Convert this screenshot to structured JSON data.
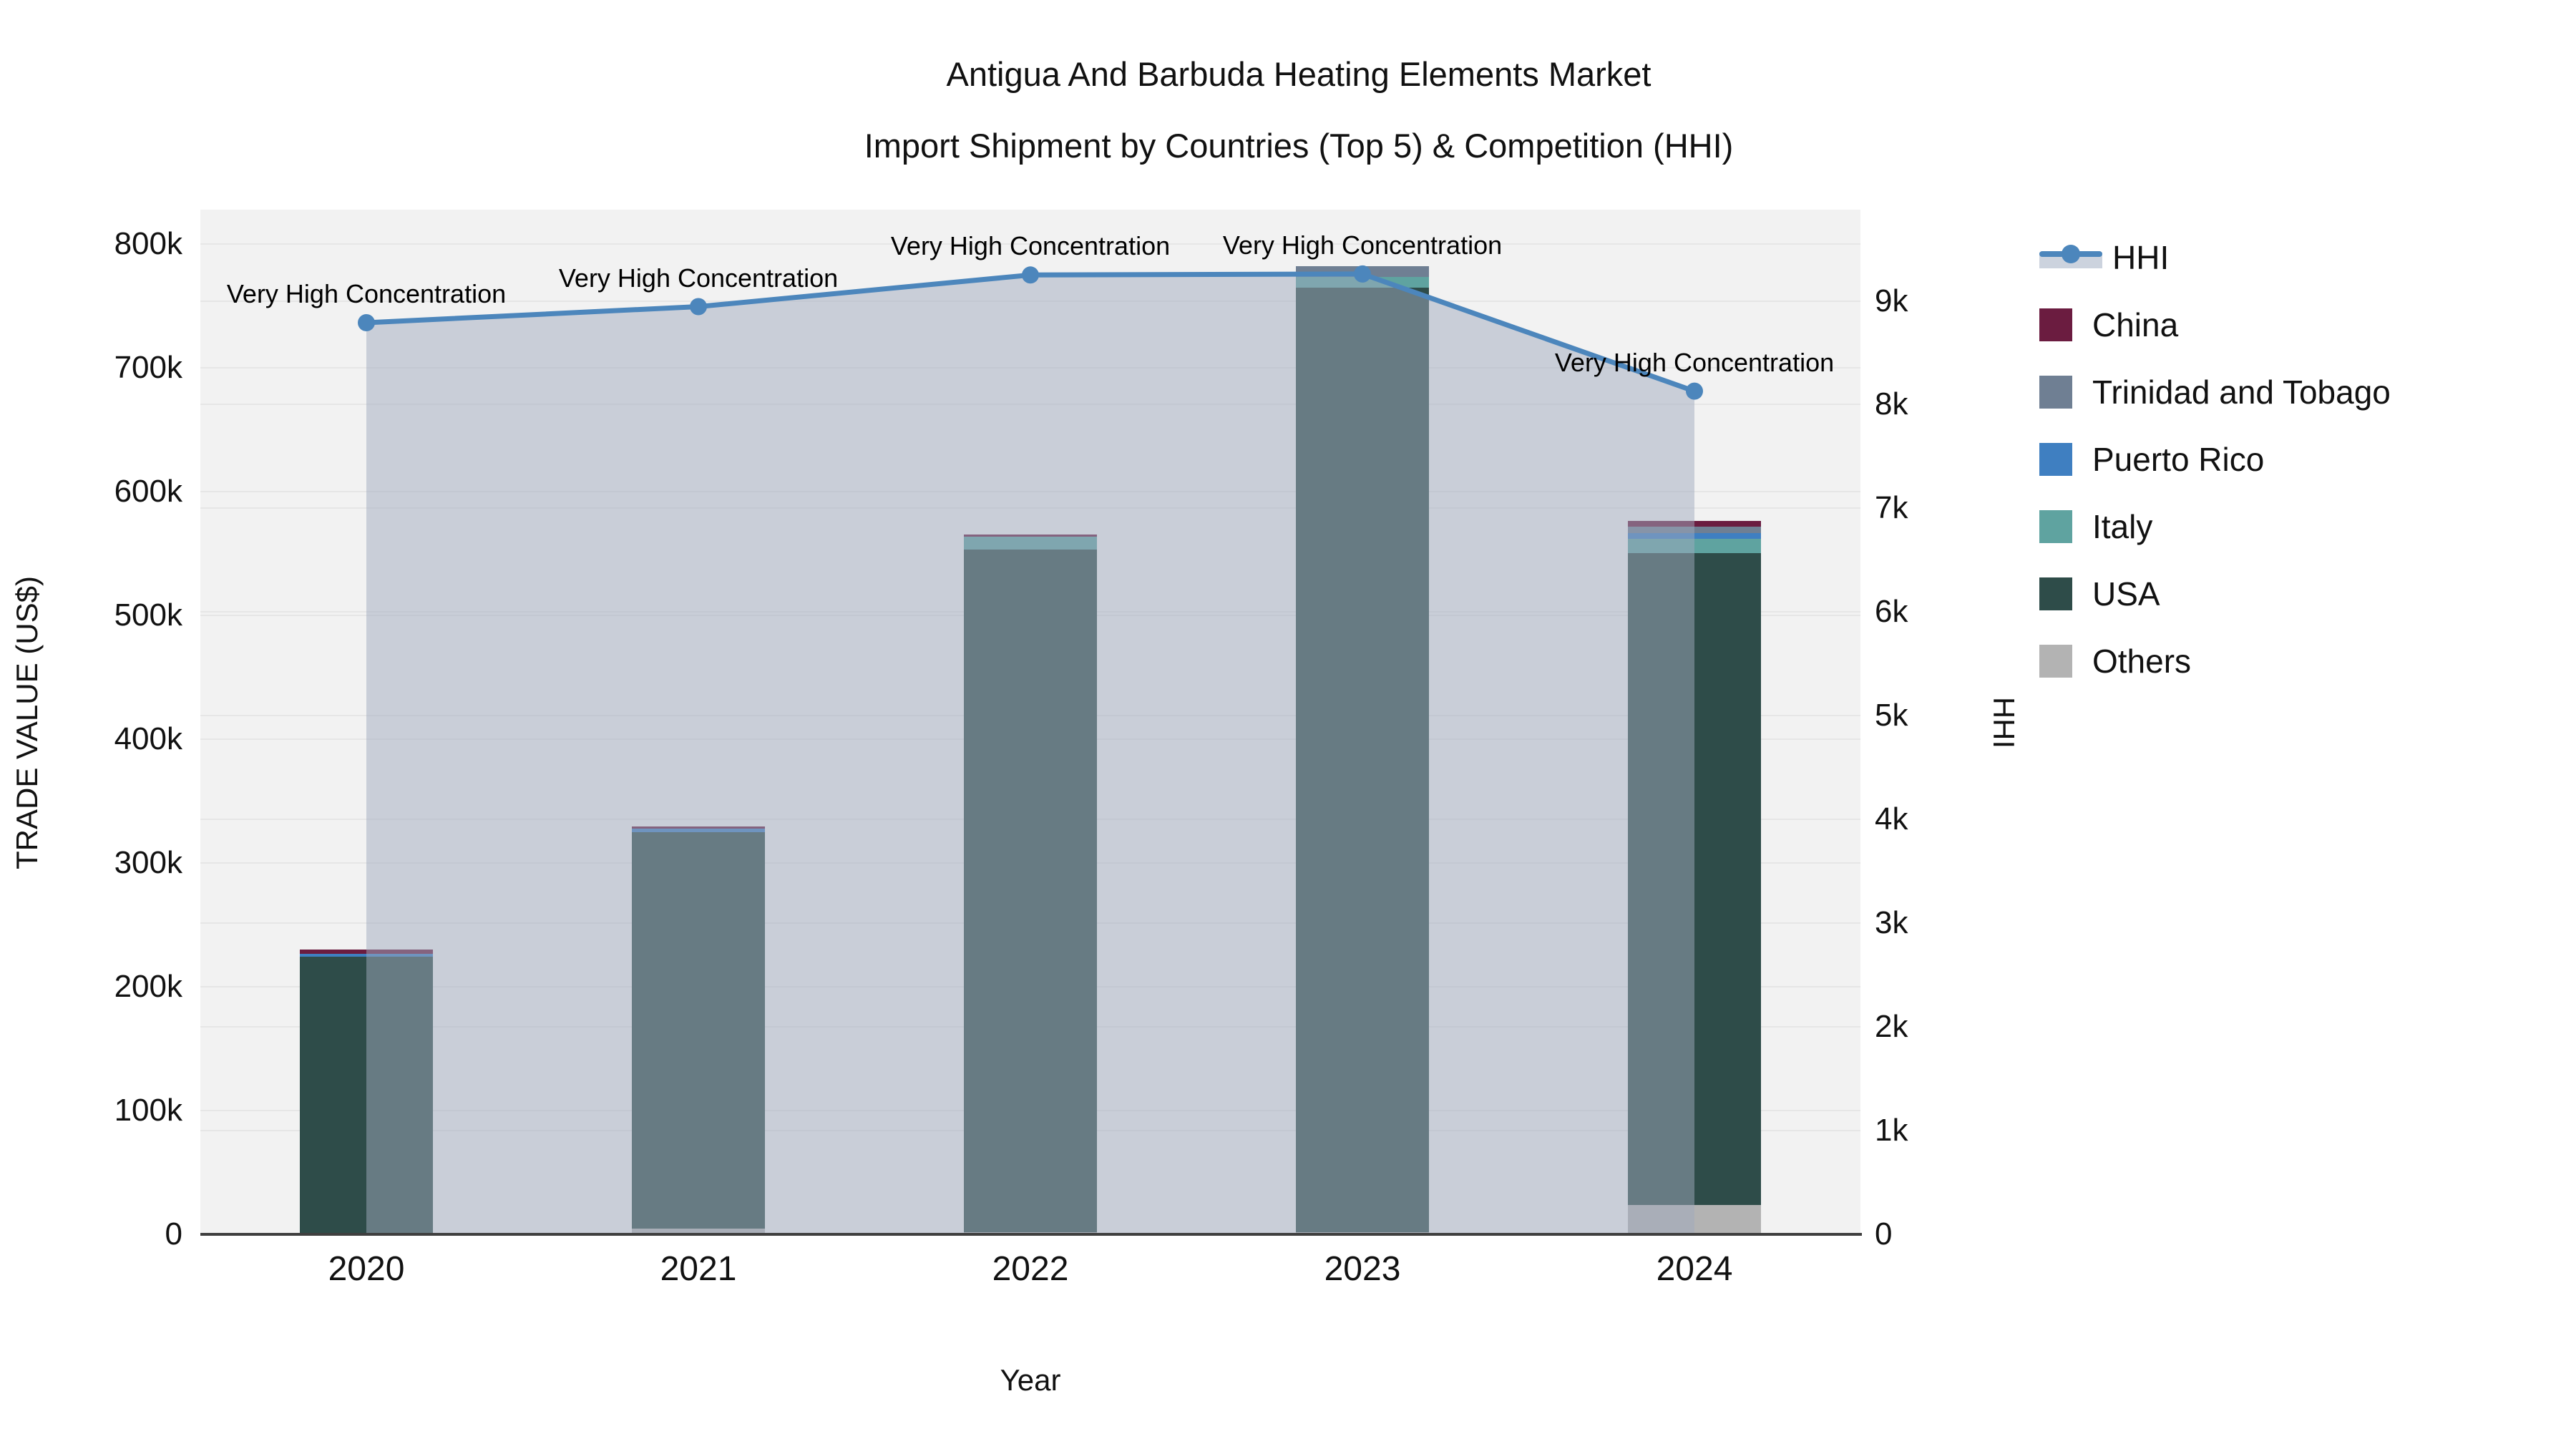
{
  "title": {
    "line1": "Antigua And Barbuda Heating Elements Market",
    "line2": "Import Shipment by Countries (Top 5) & Competition (HHI)"
  },
  "axes": {
    "left": {
      "title": "TRADE VALUE (US$)",
      "ticks": [
        "0",
        "100k",
        "200k",
        "300k",
        "400k",
        "500k",
        "600k",
        "700k",
        "800k"
      ],
      "tick_step": 100000
    },
    "right": {
      "title": "HHI",
      "ticks": [
        "0",
        "1k",
        "2k",
        "3k",
        "4k",
        "5k",
        "6k",
        "7k",
        "8k",
        "9k"
      ],
      "tick_step": 1000
    },
    "x": {
      "title": "Year",
      "categories": [
        "2020",
        "2021",
        "2022",
        "2023",
        "2024"
      ]
    }
  },
  "legend": {
    "items": [
      {
        "label": "HHI",
        "type": "line",
        "color": "#4C86BC"
      },
      {
        "label": "China",
        "type": "swatch",
        "color": "#6B1C40"
      },
      {
        "label": "Trinidad and Tobago",
        "type": "swatch",
        "color": "#6F7F93"
      },
      {
        "label": "Puerto Rico",
        "type": "swatch",
        "color": "#3F7FC1"
      },
      {
        "label": "Italy",
        "type": "swatch",
        "color": "#5FA3A0"
      },
      {
        "label": "USA",
        "type": "swatch",
        "color": "#2E4C49"
      },
      {
        "label": "Others",
        "type": "swatch",
        "color": "#B3B3B3"
      }
    ]
  },
  "chart_data": {
    "type": "bar+line",
    "title": "Antigua And Barbuda Heating Elements Market Import Shipment by Countries (Top 5) & Competition (HHI)",
    "xlabel": "Year",
    "ylabel_left": "TRADE VALUE (US$)",
    "ylabel_right": "HHI",
    "ylim_left": [
      0,
      828000
    ],
    "ylim_right": [
      0,
      9880
    ],
    "grid": true,
    "legend_position": "right",
    "categories": [
      "2020",
      "2021",
      "2022",
      "2023",
      "2024"
    ],
    "bar_stack_order_bottom_to_top": [
      "Others",
      "USA",
      "Italy",
      "Puerto Rico",
      "Trinidad and Tobago",
      "China"
    ],
    "series": [
      {
        "name": "China",
        "type": "bar",
        "color": "#6B1C40",
        "values": [
          3500,
          1700,
          1700,
          0,
          4600
        ]
      },
      {
        "name": "Trinidad and Tobago",
        "type": "bar",
        "color": "#6F7F93",
        "values": [
          0,
          0,
          0,
          9200,
          5200
        ]
      },
      {
        "name": "Puerto Rico",
        "type": "bar",
        "color": "#3F7FC1",
        "values": [
          2300,
          2900,
          0,
          0,
          4600
        ]
      },
      {
        "name": "Italy",
        "type": "bar",
        "color": "#5FA3A0",
        "values": [
          0,
          0,
          10400,
          8700,
          11600
        ]
      },
      {
        "name": "USA",
        "type": "bar",
        "color": "#2E4C49",
        "values": [
          223500,
          320500,
          551500,
          763000,
          526600
        ]
      },
      {
        "name": "Others",
        "type": "bar",
        "color": "#B3B3B3",
        "values": [
          700,
          4600,
          1700,
          1700,
          23700
        ]
      },
      {
        "name": "HHI",
        "type": "line",
        "yaxis": "right",
        "color": "#4C86BC",
        "area_fill": "rgba(160,170,190,0.5)",
        "values": [
          8790,
          8945,
          9250,
          9260,
          8130
        ]
      }
    ],
    "bar_totals": [
      230000,
      329700,
      565300,
      782600,
      576300
    ],
    "annotations": [
      "Very High Concentration",
      "Very High Concentration",
      "Very High Concentration",
      "Very High Concentration",
      "Very High Concentration"
    ]
  }
}
